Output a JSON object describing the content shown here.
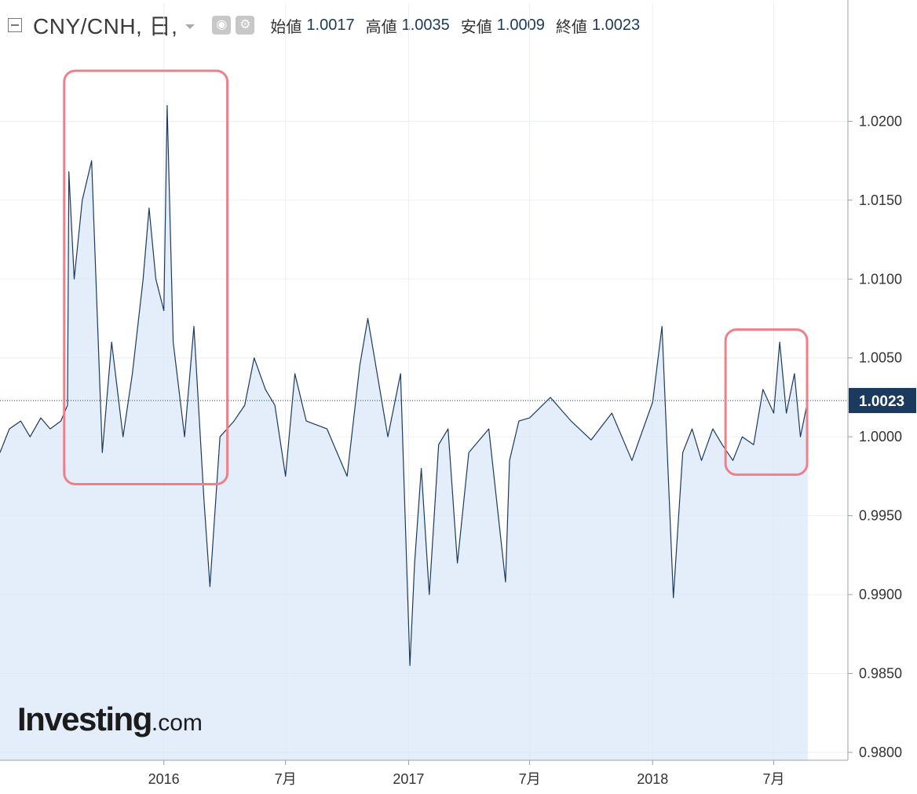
{
  "header": {
    "symbol": "CNY/CNH, 日,",
    "ohlc": [
      {
        "label": "始値",
        "value": "1.0017"
      },
      {
        "label": "高値",
        "value": "1.0035"
      },
      {
        "label": "安値",
        "value": "1.0009"
      },
      {
        "label": "終値",
        "value": "1.0023"
      }
    ]
  },
  "logo": {
    "main": "Investing",
    "suffix": ".com"
  },
  "colors": {
    "line": "#1b3a5f",
    "fill": "#dbe8f8",
    "highlight": "#ef7f88",
    "last_price_badge": "#1b3a5f"
  },
  "chart_data": {
    "type": "area",
    "title": "",
    "xlabel": "",
    "ylabel": "",
    "ylim": [
      0.9795,
      1.0245
    ],
    "y_ticks": [
      "1.0200",
      "1.0150",
      "1.0100",
      "1.0050",
      "1.0000",
      "0.9950",
      "0.9900",
      "0.9850",
      "0.9800"
    ],
    "x_ticks": [
      {
        "label": "2016",
        "x": "2016-01-01"
      },
      {
        "label": "7月",
        "x": "2016-07-01"
      },
      {
        "label": "2017",
        "x": "2017-01-01"
      },
      {
        "label": "7月",
        "x": "2017-07-01"
      },
      {
        "label": "2018",
        "x": "2018-01-01"
      },
      {
        "label": "7月",
        "x": "2018-07-01"
      }
    ],
    "last_price": "1.0023",
    "annotations": [
      {
        "shape": "rounded-rect",
        "x": [
          "2015-08-05",
          "2016-04-05"
        ],
        "y": [
          0.997,
          1.0232
        ]
      },
      {
        "shape": "rounded-rect",
        "x": [
          "2018-04-20",
          "2018-08-20"
        ],
        "y": [
          0.9976,
          1.0068
        ]
      }
    ],
    "series": [
      {
        "x": [
          "2015-05-01",
          "2015-05-15",
          "2015-06-01",
          "2015-06-15",
          "2015-07-01",
          "2015-07-15",
          "2015-07-31",
          "2015-08-10",
          "2015-08-12",
          "2015-08-20",
          "2015-09-01",
          "2015-09-15",
          "2015-10-01",
          "2015-10-15",
          "2015-11-01",
          "2015-11-15",
          "2015-12-01",
          "2015-12-10",
          "2015-12-20",
          "2016-01-01",
          "2016-01-06",
          "2016-01-15",
          "2016-02-01",
          "2016-02-15",
          "2016-03-01",
          "2016-03-10",
          "2016-03-25",
          "2016-04-15",
          "2016-05-01",
          "2016-05-15",
          "2016-06-01",
          "2016-06-15",
          "2016-07-01",
          "2016-07-15",
          "2016-08-01",
          "2016-09-01",
          "2016-10-01",
          "2016-10-20",
          "2016-11-01",
          "2016-11-15",
          "2016-12-01",
          "2016-12-20",
          "2017-01-03",
          "2017-01-10",
          "2017-01-20",
          "2017-02-01",
          "2017-02-15",
          "2017-03-01",
          "2017-03-15",
          "2017-04-01",
          "2017-05-01",
          "2017-05-26",
          "2017-06-01",
          "2017-06-15",
          "2017-07-01",
          "2017-08-01",
          "2017-09-01",
          "2017-10-01",
          "2017-11-01",
          "2017-12-01",
          "2018-01-01",
          "2018-01-15",
          "2018-02-01",
          "2018-02-15",
          "2018-03-01",
          "2018-03-15",
          "2018-04-01",
          "2018-04-15",
          "2018-05-01",
          "2018-05-15",
          "2018-06-01",
          "2018-06-15",
          "2018-07-01",
          "2018-07-10",
          "2018-07-20",
          "2018-08-01",
          "2018-08-10",
          "2018-08-21"
        ],
        "values": [
          0.999,
          1.0005,
          1.001,
          1.0,
          1.0012,
          1.0005,
          1.001,
          1.002,
          1.0168,
          1.01,
          1.015,
          1.0175,
          0.999,
          1.006,
          1.0,
          1.004,
          1.01,
          1.0145,
          1.01,
          1.008,
          1.021,
          1.006,
          1.0,
          1.007,
          0.996,
          0.9905,
          1.0,
          1.001,
          1.002,
          1.005,
          1.003,
          1.002,
          0.9975,
          1.004,
          1.001,
          1.0005,
          0.9975,
          1.0045,
          1.0075,
          1.004,
          1.0,
          1.004,
          0.9855,
          0.992,
          0.998,
          0.99,
          0.9995,
          1.0005,
          0.992,
          0.999,
          1.0005,
          0.9908,
          0.9985,
          1.001,
          1.0012,
          1.0025,
          1.001,
          0.9998,
          1.0015,
          0.9985,
          1.0022,
          1.007,
          0.9898,
          0.999,
          1.0005,
          0.9985,
          1.0005,
          0.9995,
          0.9985,
          1.0,
          0.9995,
          1.003,
          1.0015,
          1.006,
          1.0015,
          1.004,
          1.0,
          1.0023
        ]
      }
    ]
  }
}
